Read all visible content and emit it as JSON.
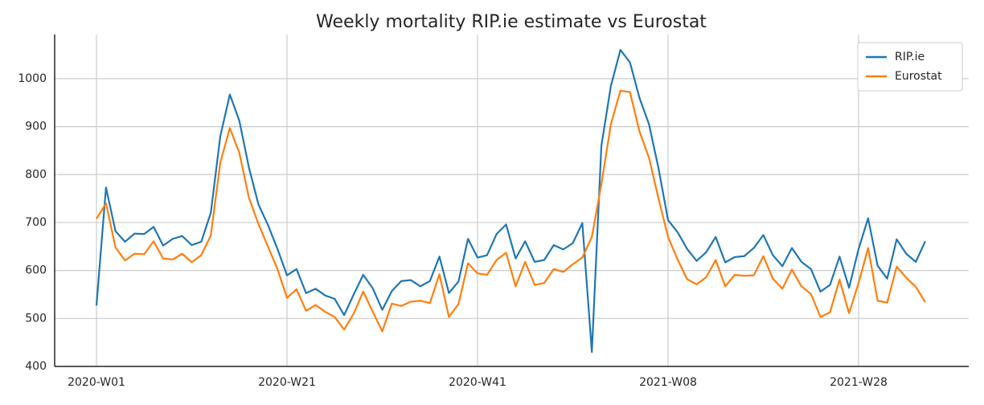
{
  "chart_data": {
    "type": "line",
    "title": "Weekly mortality RIP.ie estimate vs Eurostat",
    "categories": [
      "2020-W01",
      null,
      null,
      null,
      null,
      null,
      null,
      null,
      null,
      null,
      null,
      null,
      null,
      null,
      null,
      null,
      null,
      null,
      null,
      null,
      "2020-W21",
      null,
      null,
      null,
      null,
      null,
      null,
      null,
      null,
      null,
      null,
      null,
      null,
      null,
      null,
      null,
      null,
      null,
      null,
      null,
      "2020-W41",
      null,
      null,
      null,
      null,
      null,
      null,
      null,
      null,
      null,
      null,
      null,
      null,
      null,
      null,
      null,
      null,
      null,
      null,
      null,
      "2021-W08",
      null,
      null,
      null,
      null,
      null,
      null,
      null,
      null,
      null,
      null,
      null,
      null,
      null,
      null,
      null,
      null,
      null,
      null,
      null,
      "2021-W28",
      null,
      null,
      null,
      null,
      null,
      null,
      null
    ],
    "series": [
      {
        "name": "RIP.ie",
        "color": "#1f77b4",
        "values": [
          527,
          773,
          682,
          660,
          677,
          676,
          691,
          652,
          666,
          672,
          653,
          660,
          720,
          880,
          967,
          912,
          815,
          738,
          695,
          645,
          590,
          603,
          553,
          562,
          548,
          541,
          507,
          550,
          591,
          563,
          518,
          557,
          578,
          580,
          567,
          578,
          629,
          553,
          577,
          666,
          627,
          632,
          676,
          696,
          625,
          661,
          618,
          622,
          653,
          644,
          657,
          699,
          430,
          860,
          985,
          1060,
          1034,
          960,
          905,
          813,
          705,
          680,
          645,
          620,
          638,
          670,
          617,
          628,
          630,
          647,
          674,
          632,
          609,
          647,
          618,
          603,
          556,
          570,
          629,
          564,
          645,
          709,
          610,
          583,
          665,
          635,
          618,
          661
        ]
      },
      {
        "name": "Eurostat",
        "color": "#ff7f0e",
        "values": [
          708,
          740,
          648,
          621,
          635,
          634,
          661,
          625,
          623,
          635,
          617,
          632,
          673,
          825,
          897,
          845,
          752,
          697,
          650,
          603,
          543,
          561,
          516,
          528,
          514,
          503,
          477,
          510,
          556,
          514,
          473,
          531,
          526,
          535,
          537,
          532,
          592,
          503,
          530,
          615,
          594,
          591,
          622,
          637,
          567,
          618,
          570,
          574,
          603,
          597,
          613,
          627,
          670,
          780,
          905,
          975,
          972,
          890,
          835,
          750,
          670,
          623,
          582,
          571,
          586,
          622,
          567,
          591,
          589,
          590,
          630,
          583,
          562,
          602,
          567,
          551,
          503,
          513,
          581,
          511,
          574,
          647,
          537,
          533,
          608,
          585,
          566,
          534
        ]
      }
    ],
    "ylim": [
      400,
      1092
    ],
    "yticks": [
      400,
      500,
      600,
      700,
      800,
      900,
      1000
    ],
    "grid": true,
    "legend": "upper right"
  }
}
